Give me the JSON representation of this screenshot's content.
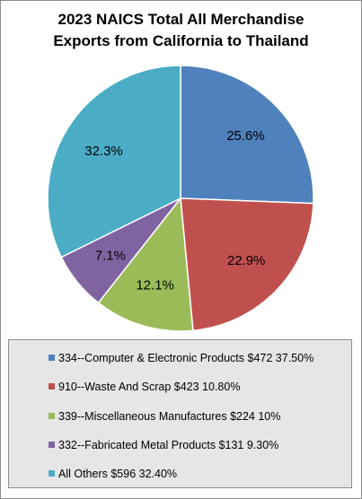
{
  "chart_data": {
    "type": "pie",
    "title_lines": [
      "2023 NAICS Total All Merchandise",
      "Exports from California to Thailand"
    ],
    "slices": [
      {
        "label": "25.6%",
        "value": 25.6,
        "color": "#4f81bd"
      },
      {
        "label": "22.9%",
        "value": 22.9,
        "color": "#c0504d"
      },
      {
        "label": "12.1%",
        "value": 12.1,
        "color": "#9bbb59"
      },
      {
        "label": "7.1%",
        "value": 7.1,
        "color": "#8064a2"
      },
      {
        "label": "32.3%",
        "value": 32.3,
        "color": "#4bacc6"
      }
    ],
    "legend": [
      {
        "text": "334--Computer & Electronic Products $472 37.50%",
        "color": "#4f81bd"
      },
      {
        "text": "910--Waste And Scrap $423 10.80%",
        "color": "#c0504d"
      },
      {
        "text": "339--Miscellaneous Manufactures $224 10%",
        "color": "#9bbb59"
      },
      {
        "text": "332--Fabricated Metal Products $131 9.30%",
        "color": "#8064a2"
      },
      {
        "text": "All Others $596 32.40%",
        "color": "#4bacc6"
      }
    ],
    "legend_placement": "bottom"
  }
}
